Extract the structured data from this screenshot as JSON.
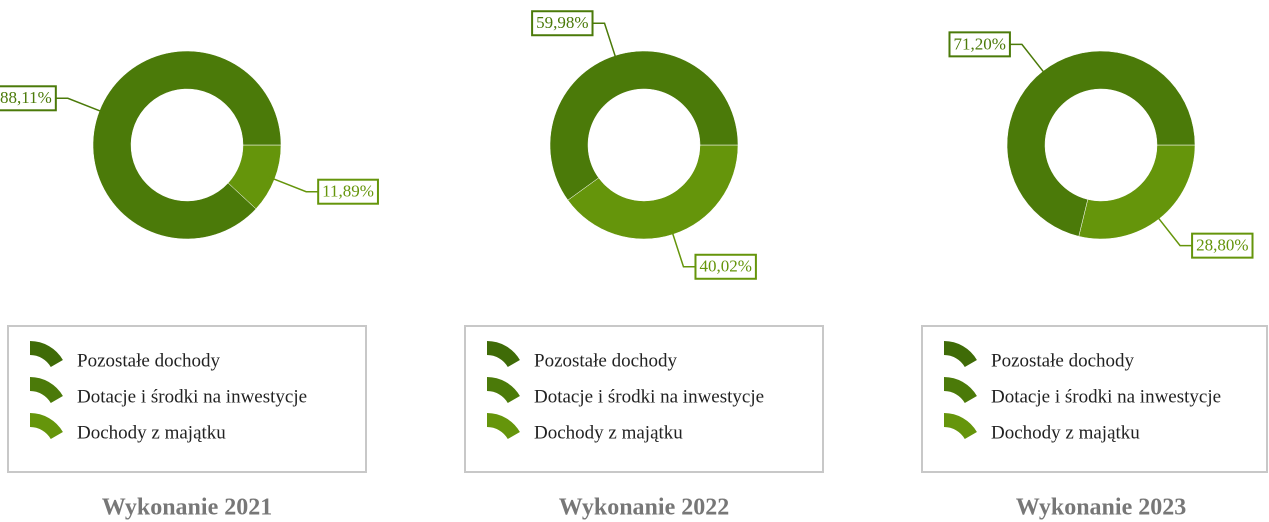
{
  "chart_data": [
    {
      "type": "pie",
      "title": "Wykonanie 2021",
      "categories": [
        "Pozostałe dochody",
        "Dotacje i środki na inwestycje",
        "Dochody z majątku"
      ],
      "colors": [
        "#3f6b07",
        "#4b7a09",
        "#65950b"
      ],
      "values": [
        0,
        88.11,
        11.89
      ],
      "value_labels": [
        null,
        "88,11%",
        "11,89%"
      ]
    },
    {
      "type": "pie",
      "title": "Wykonanie 2022",
      "categories": [
        "Pozostałe dochody",
        "Dotacje i środki na inwestycje",
        "Dochody z majątku"
      ],
      "colors": [
        "#3f6b07",
        "#4b7a09",
        "#65950b"
      ],
      "values": [
        0,
        59.98,
        40.02
      ],
      "value_labels": [
        null,
        "59,98%",
        "40,02%"
      ]
    },
    {
      "type": "pie",
      "title": "Wykonanie 2023",
      "categories": [
        "Pozostałe dochody",
        "Dotacje i środki na inwestycje",
        "Dochody z majątku"
      ],
      "colors": [
        "#3f6b07",
        "#4b7a09",
        "#65950b"
      ],
      "values": [
        0,
        71.2,
        28.8
      ],
      "value_labels": [
        null,
        "71,20%",
        "28,80%"
      ]
    }
  ]
}
